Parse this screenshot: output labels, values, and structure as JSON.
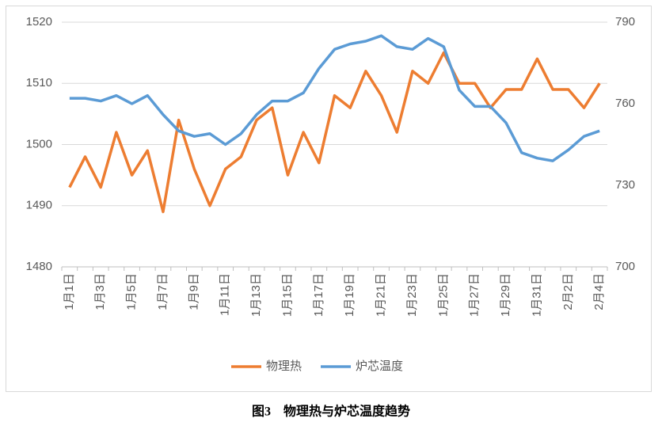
{
  "chart_data": {
    "type": "line",
    "caption": "图3　物理热与炉芯温度趋势",
    "categories": [
      "1月1日",
      null,
      "1月3日",
      null,
      "1月5日",
      null,
      "1月7日",
      null,
      "1月9日",
      null,
      "1月11日",
      null,
      "1月13日",
      null,
      "1月15日",
      null,
      "1月17日",
      null,
      "1月19日",
      null,
      "1月21日",
      null,
      "1月23日",
      null,
      "1月25日",
      null,
      "1月27日",
      null,
      "1月29日",
      null,
      "1月31日",
      null,
      "2月2日",
      null,
      "2月4日"
    ],
    "series": [
      {
        "name": "物理热",
        "color": "#ed7d31",
        "values": [
          1493,
          1498,
          1493,
          1502,
          1495,
          1499,
          1489,
          1504,
          1496,
          1490,
          1496,
          1498,
          1504,
          1506,
          1495,
          1502,
          1497,
          1508,
          1506,
          1512,
          1508,
          1502,
          1512,
          1510,
          1515,
          1510,
          1510,
          1506,
          1509,
          1509,
          1514,
          1509,
          1509,
          1506,
          1510
        ]
      },
      {
        "name": "炉芯温度",
        "color": "#5b9bd5",
        "axis": "y2",
        "values": [
          762,
          762,
          761,
          763,
          760,
          763,
          756,
          750,
          748,
          749,
          745,
          749,
          756,
          761,
          761,
          764,
          773,
          780,
          782,
          783,
          785,
          781,
          780,
          784,
          781,
          765,
          759,
          759,
          753,
          742,
          740,
          739,
          743,
          748,
          750
        ]
      }
    ],
    "ylim": [
      1480,
      1520
    ],
    "yticks": [
      1480,
      1490,
      1500,
      1510,
      1520
    ],
    "y2lim": [
      700,
      790
    ],
    "y2ticks": [
      700,
      730,
      760,
      790
    ],
    "grid": true,
    "legend": "bottom"
  }
}
